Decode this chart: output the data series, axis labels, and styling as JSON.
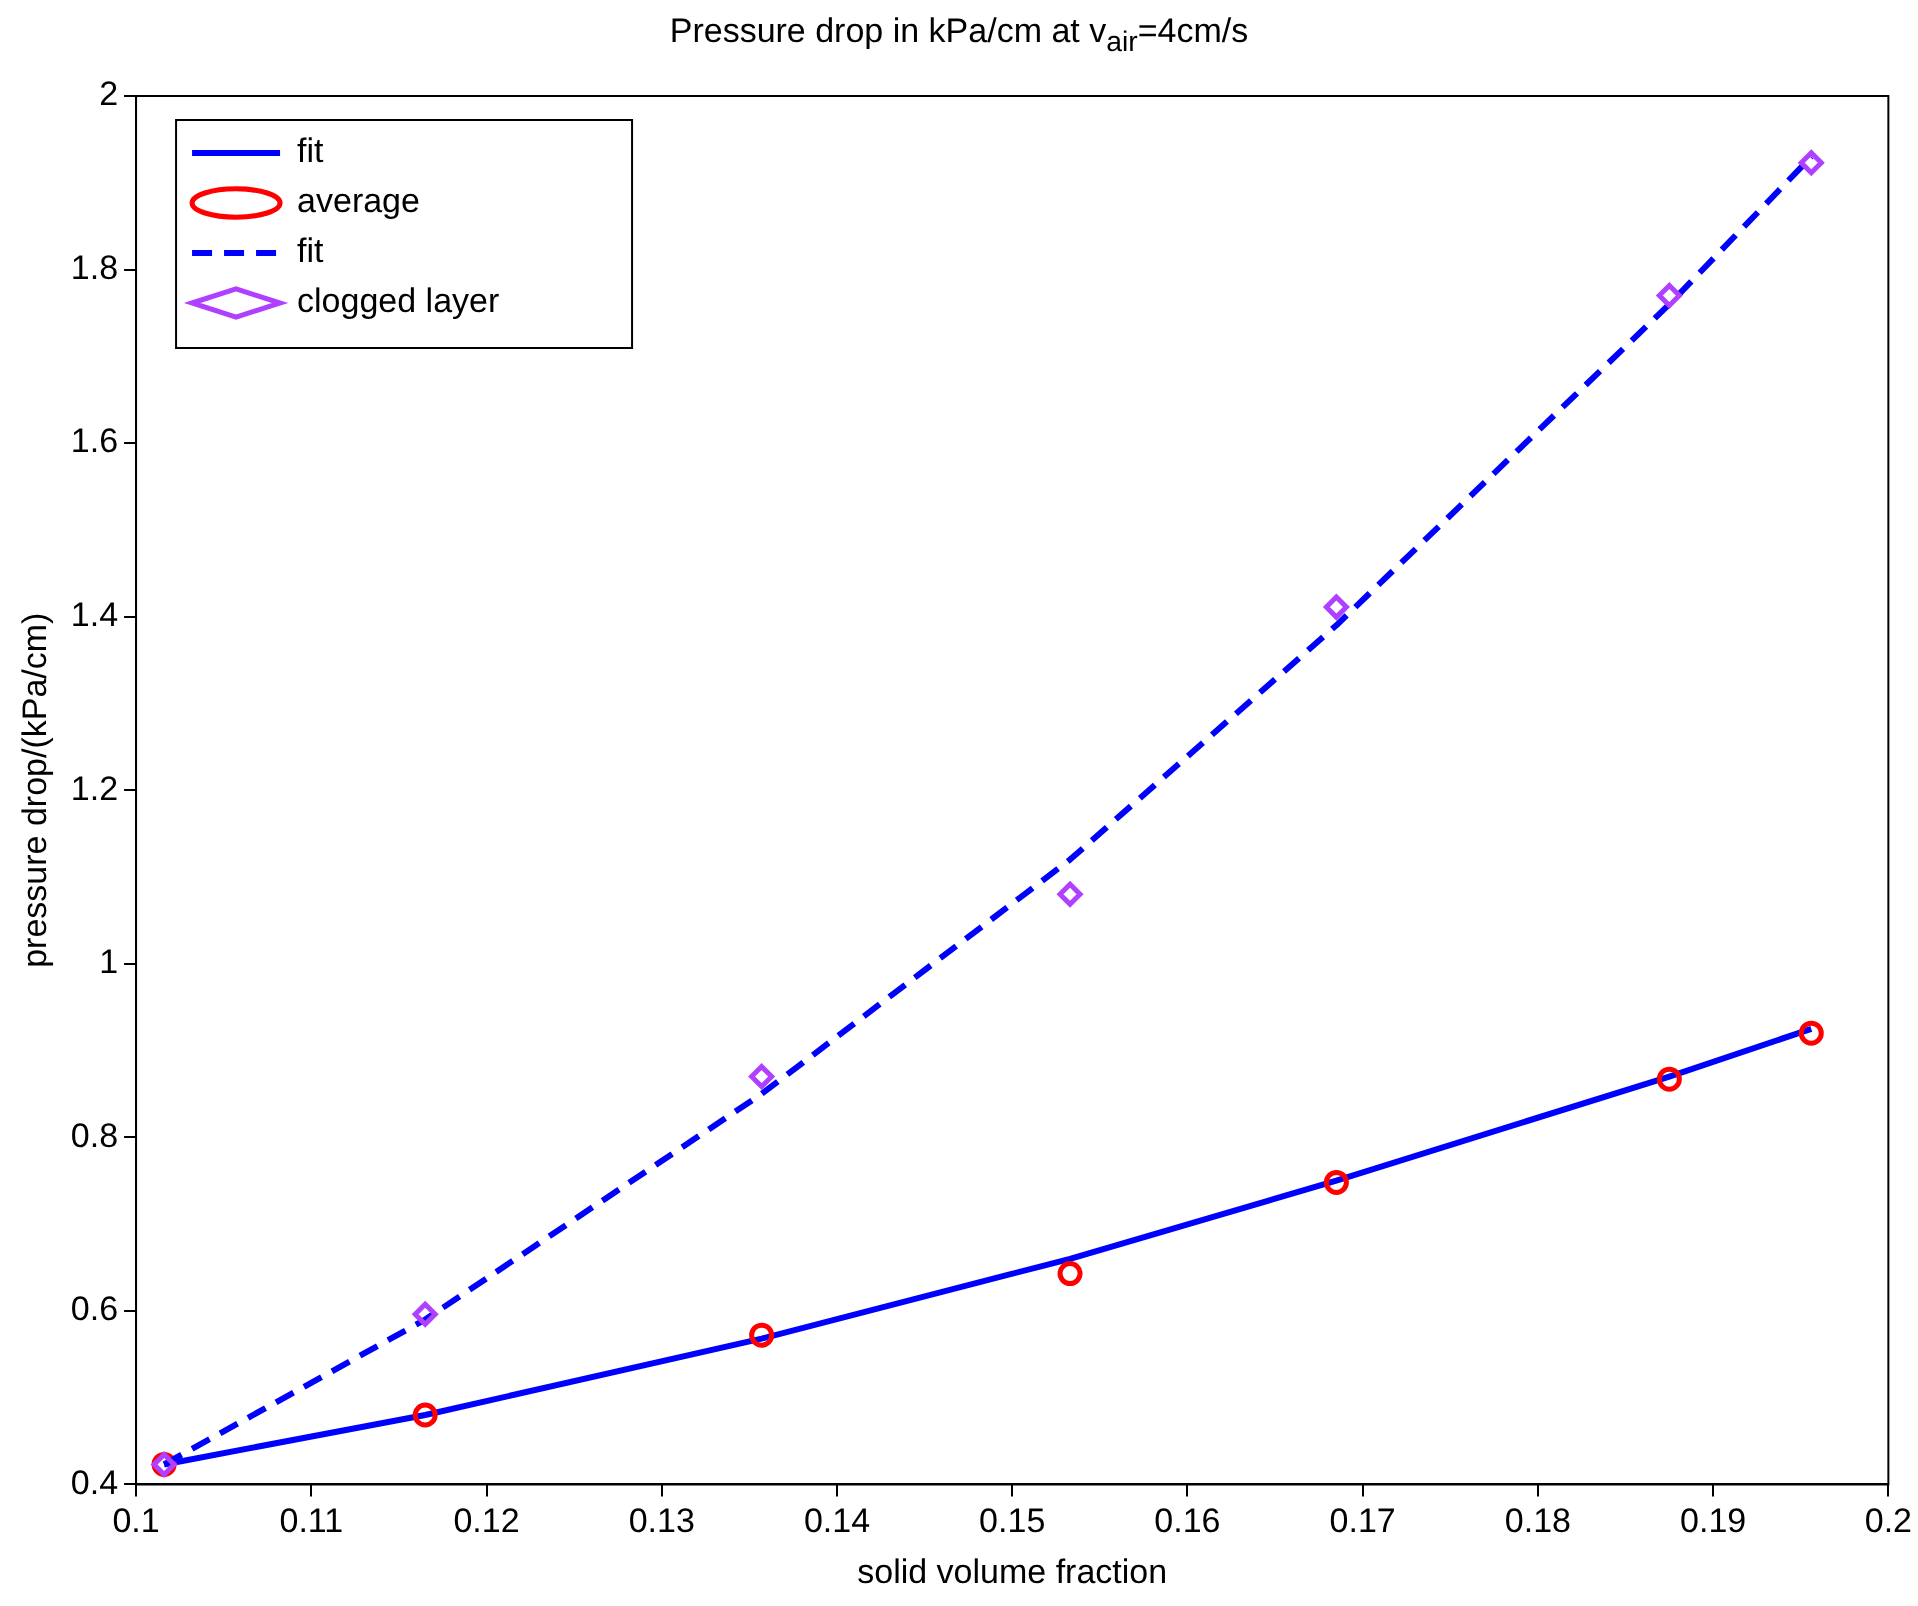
{
  "chart_data": {
    "type": "scatter",
    "title": "Pressure drop in kPa/cm at v$_{air}$=4cm/s",
    "xlabel": "solid volume fraction",
    "ylabel": "pressure drop/(kPa/cm)",
    "x": [
      0.1016,
      0.1165,
      0.1357,
      0.1533,
      0.1685,
      0.1875,
      0.1956
    ],
    "series": [
      {
        "name": "fit",
        "type": "line",
        "color": "#0000ff",
        "line_style": "solid",
        "marker": "none",
        "values": [
          0.423,
          0.48,
          0.568,
          0.66,
          0.75,
          0.87,
          0.925
        ]
      },
      {
        "name": "average",
        "type": "scatter",
        "color": "#ff0000",
        "marker": "circle",
        "values": [
          0.423,
          0.48,
          0.572,
          0.643,
          0.748,
          0.867,
          0.92
        ]
      },
      {
        "name": "fit",
        "type": "line",
        "color": "#0000ff",
        "line_style": "dashed",
        "marker": "none",
        "values": [
          0.423,
          0.59,
          0.85,
          1.12,
          1.39,
          1.76,
          1.93
        ]
      },
      {
        "name": "clogged layer",
        "type": "scatter",
        "color": "#b040ff",
        "marker": "diamond",
        "values": [
          0.423,
          0.596,
          0.87,
          1.08,
          1.411,
          1.77,
          1.923
        ]
      }
    ],
    "xlim": [
      0.1,
      0.2
    ],
    "xticks": [
      0.1,
      0.11,
      0.12,
      0.13,
      0.14,
      0.15,
      0.16,
      0.17,
      0.18,
      0.19,
      0.2
    ],
    "ylim": [
      0.4,
      2
    ],
    "yticks": [
      0.4,
      0.6,
      0.8,
      1,
      1.2,
      1.4,
      1.6,
      1.8,
      2
    ],
    "grid": false,
    "legend": "top left"
  }
}
